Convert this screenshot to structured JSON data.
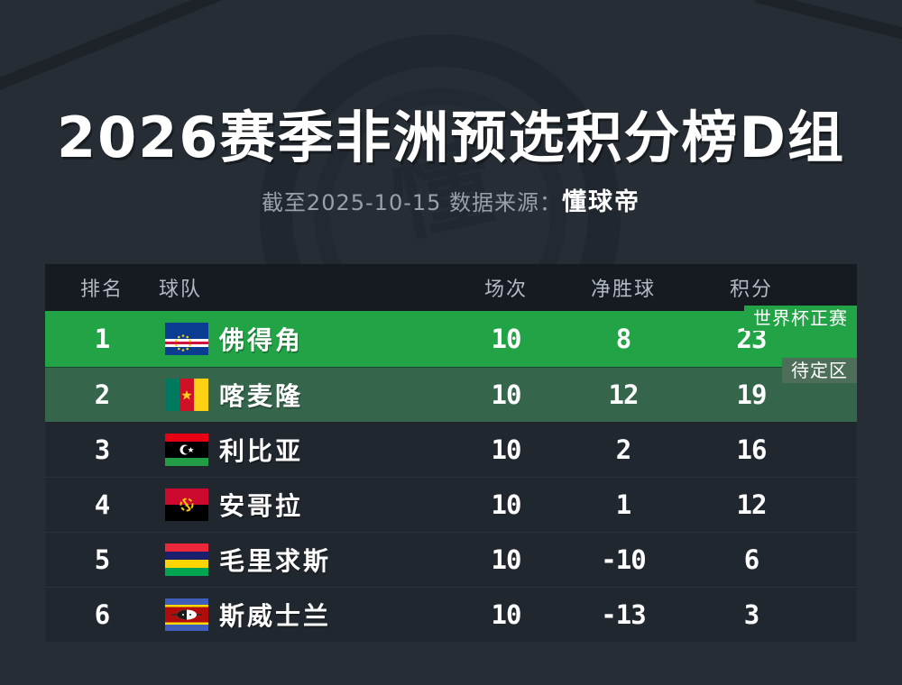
{
  "page": {
    "title": "2026赛季非洲预选积分榜D组",
    "subtitle_prefix": "截至2025-10-15 数据来源：",
    "subtitle_source": "懂球帝"
  },
  "table": {
    "headers": {
      "rank": "排名",
      "team": "球队",
      "played": "场次",
      "gd": "净胜球",
      "points": "积分"
    },
    "badges": {
      "qualified": "世界杯正赛",
      "pending": "待定区"
    },
    "rows": [
      {
        "rank": "1",
        "team": "佛得角",
        "flag": "cape-verde",
        "played": "10",
        "gd": "8",
        "points": "23",
        "highlight": "qualified"
      },
      {
        "rank": "2",
        "team": "喀麦隆",
        "flag": "cameroon",
        "played": "10",
        "gd": "12",
        "points": "19",
        "highlight": "pending"
      },
      {
        "rank": "3",
        "team": "利比亚",
        "flag": "libya",
        "played": "10",
        "gd": "2",
        "points": "16",
        "highlight": "none"
      },
      {
        "rank": "4",
        "team": "安哥拉",
        "flag": "angola",
        "played": "10",
        "gd": "1",
        "points": "12",
        "highlight": "none"
      },
      {
        "rank": "5",
        "team": "毛里求斯",
        "flag": "mauritius",
        "played": "10",
        "gd": "-10",
        "points": "6",
        "highlight": "none"
      },
      {
        "rank": "6",
        "team": "斯威士兰",
        "flag": "eswatini",
        "played": "10",
        "gd": "-13",
        "points": "3",
        "highlight": "none"
      }
    ]
  },
  "colors": {
    "background": "#262d35",
    "table_header_bg": "#161b22",
    "row_default_bg": "#21272e",
    "row_qualified_bg": "#22a346",
    "row_pending_bg": "#35664c",
    "badge_pending_bg": "#4d6f5a",
    "header_text": "#b3b9c0",
    "subtitle_text": "#99a0a9",
    "row_text": "#ffffff"
  },
  "chart_data": {
    "type": "table",
    "title": "2026赛季非洲预选积分榜D组",
    "subtitle": "截至2025-10-15 数据来源：懂球帝",
    "columns": [
      "排名",
      "球队",
      "场次",
      "净胜球",
      "积分"
    ],
    "rows": [
      [
        "1",
        "佛得角",
        "10",
        "8",
        "23"
      ],
      [
        "2",
        "喀麦隆",
        "10",
        "12",
        "19"
      ],
      [
        "3",
        "利比亚",
        "10",
        "2",
        "16"
      ],
      [
        "4",
        "安哥拉",
        "10",
        "1",
        "12"
      ],
      [
        "5",
        "毛里求斯",
        "10",
        "-10",
        "6"
      ],
      [
        "6",
        "斯威士兰",
        "10",
        "-13",
        "3"
      ]
    ],
    "annotations": [
      {
        "row": 1,
        "label": "世界杯正赛"
      },
      {
        "row": 2,
        "label": "待定区"
      }
    ]
  }
}
